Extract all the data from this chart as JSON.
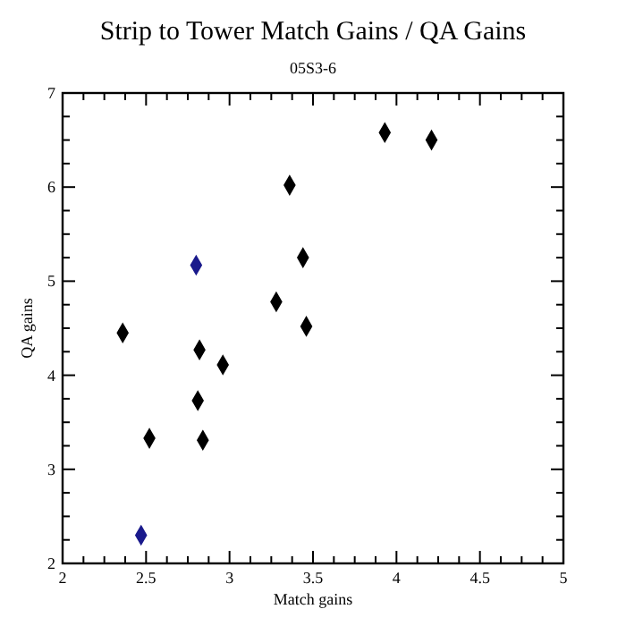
{
  "chart_data": {
    "type": "scatter",
    "title": "Strip to Tower Match Gains / QA Gains",
    "subtitle": "05S3-6",
    "xlabel": "Match gains",
    "ylabel": "QA gains",
    "x": [
      2.36,
      2.52,
      2.47,
      2.8,
      2.82,
      2.81,
      2.84,
      2.96,
      3.28,
      3.36,
      3.44,
      3.46,
      3.93,
      4.21
    ],
    "values": [
      4.45,
      3.33,
      2.3,
      5.17,
      4.27,
      3.73,
      3.31,
      4.11,
      4.78,
      6.02,
      5.25,
      4.52,
      6.58,
      6.5
    ],
    "colors": [
      "#000000",
      "#000000",
      "#1a1a8c",
      "#1a1a8c",
      "#000000",
      "#000000",
      "#000000",
      "#000000",
      "#000000",
      "#000000",
      "#000000",
      "#000000",
      "#000000",
      "#000000"
    ],
    "xlim": [
      2,
      5
    ],
    "ylim": [
      2,
      7
    ],
    "xticks": [
      2,
      2.5,
      3,
      3.5,
      4,
      4.5,
      5
    ],
    "yticks": [
      2,
      3,
      4,
      5,
      6,
      7
    ],
    "grid": false,
    "marker": "diamond"
  }
}
